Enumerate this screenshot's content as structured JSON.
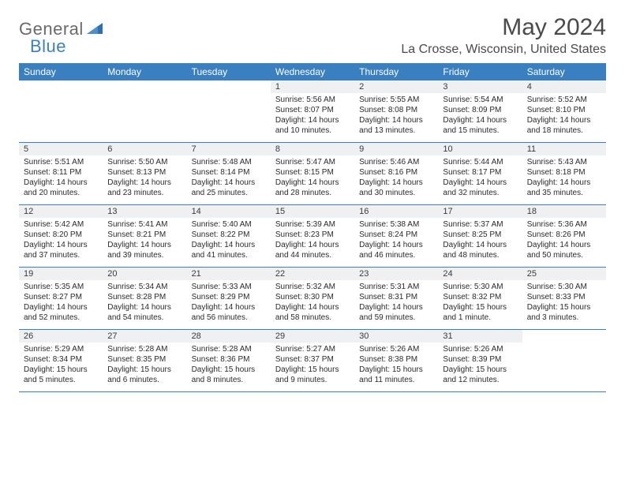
{
  "brand": {
    "part1": "General",
    "part2": "Blue"
  },
  "title": "May 2024",
  "location": "La Crosse, Wisconsin, United States",
  "colors": {
    "header_bg": "#3a7fbf",
    "header_text": "#ffffff",
    "daynum_bg": "#eef0f1",
    "row_border": "#3a7fbf",
    "title_color": "#4a4a4a",
    "logo_gray": "#6a6a6a",
    "logo_blue": "#3a7fbf"
  },
  "day_headers": [
    "Sunday",
    "Monday",
    "Tuesday",
    "Wednesday",
    "Thursday",
    "Friday",
    "Saturday"
  ],
  "weeks": [
    [
      {
        "n": "",
        "sunrise": "",
        "sunset": "",
        "dl1": "",
        "dl2": ""
      },
      {
        "n": "",
        "sunrise": "",
        "sunset": "",
        "dl1": "",
        "dl2": ""
      },
      {
        "n": "",
        "sunrise": "",
        "sunset": "",
        "dl1": "",
        "dl2": ""
      },
      {
        "n": "1",
        "sunrise": "Sunrise: 5:56 AM",
        "sunset": "Sunset: 8:07 PM",
        "dl1": "Daylight: 14 hours",
        "dl2": "and 10 minutes."
      },
      {
        "n": "2",
        "sunrise": "Sunrise: 5:55 AM",
        "sunset": "Sunset: 8:08 PM",
        "dl1": "Daylight: 14 hours",
        "dl2": "and 13 minutes."
      },
      {
        "n": "3",
        "sunrise": "Sunrise: 5:54 AM",
        "sunset": "Sunset: 8:09 PM",
        "dl1": "Daylight: 14 hours",
        "dl2": "and 15 minutes."
      },
      {
        "n": "4",
        "sunrise": "Sunrise: 5:52 AM",
        "sunset": "Sunset: 8:10 PM",
        "dl1": "Daylight: 14 hours",
        "dl2": "and 18 minutes."
      }
    ],
    [
      {
        "n": "5",
        "sunrise": "Sunrise: 5:51 AM",
        "sunset": "Sunset: 8:11 PM",
        "dl1": "Daylight: 14 hours",
        "dl2": "and 20 minutes."
      },
      {
        "n": "6",
        "sunrise": "Sunrise: 5:50 AM",
        "sunset": "Sunset: 8:13 PM",
        "dl1": "Daylight: 14 hours",
        "dl2": "and 23 minutes."
      },
      {
        "n": "7",
        "sunrise": "Sunrise: 5:48 AM",
        "sunset": "Sunset: 8:14 PM",
        "dl1": "Daylight: 14 hours",
        "dl2": "and 25 minutes."
      },
      {
        "n": "8",
        "sunrise": "Sunrise: 5:47 AM",
        "sunset": "Sunset: 8:15 PM",
        "dl1": "Daylight: 14 hours",
        "dl2": "and 28 minutes."
      },
      {
        "n": "9",
        "sunrise": "Sunrise: 5:46 AM",
        "sunset": "Sunset: 8:16 PM",
        "dl1": "Daylight: 14 hours",
        "dl2": "and 30 minutes."
      },
      {
        "n": "10",
        "sunrise": "Sunrise: 5:44 AM",
        "sunset": "Sunset: 8:17 PM",
        "dl1": "Daylight: 14 hours",
        "dl2": "and 32 minutes."
      },
      {
        "n": "11",
        "sunrise": "Sunrise: 5:43 AM",
        "sunset": "Sunset: 8:18 PM",
        "dl1": "Daylight: 14 hours",
        "dl2": "and 35 minutes."
      }
    ],
    [
      {
        "n": "12",
        "sunrise": "Sunrise: 5:42 AM",
        "sunset": "Sunset: 8:20 PM",
        "dl1": "Daylight: 14 hours",
        "dl2": "and 37 minutes."
      },
      {
        "n": "13",
        "sunrise": "Sunrise: 5:41 AM",
        "sunset": "Sunset: 8:21 PM",
        "dl1": "Daylight: 14 hours",
        "dl2": "and 39 minutes."
      },
      {
        "n": "14",
        "sunrise": "Sunrise: 5:40 AM",
        "sunset": "Sunset: 8:22 PM",
        "dl1": "Daylight: 14 hours",
        "dl2": "and 41 minutes."
      },
      {
        "n": "15",
        "sunrise": "Sunrise: 5:39 AM",
        "sunset": "Sunset: 8:23 PM",
        "dl1": "Daylight: 14 hours",
        "dl2": "and 44 minutes."
      },
      {
        "n": "16",
        "sunrise": "Sunrise: 5:38 AM",
        "sunset": "Sunset: 8:24 PM",
        "dl1": "Daylight: 14 hours",
        "dl2": "and 46 minutes."
      },
      {
        "n": "17",
        "sunrise": "Sunrise: 5:37 AM",
        "sunset": "Sunset: 8:25 PM",
        "dl1": "Daylight: 14 hours",
        "dl2": "and 48 minutes."
      },
      {
        "n": "18",
        "sunrise": "Sunrise: 5:36 AM",
        "sunset": "Sunset: 8:26 PM",
        "dl1": "Daylight: 14 hours",
        "dl2": "and 50 minutes."
      }
    ],
    [
      {
        "n": "19",
        "sunrise": "Sunrise: 5:35 AM",
        "sunset": "Sunset: 8:27 PM",
        "dl1": "Daylight: 14 hours",
        "dl2": "and 52 minutes."
      },
      {
        "n": "20",
        "sunrise": "Sunrise: 5:34 AM",
        "sunset": "Sunset: 8:28 PM",
        "dl1": "Daylight: 14 hours",
        "dl2": "and 54 minutes."
      },
      {
        "n": "21",
        "sunrise": "Sunrise: 5:33 AM",
        "sunset": "Sunset: 8:29 PM",
        "dl1": "Daylight: 14 hours",
        "dl2": "and 56 minutes."
      },
      {
        "n": "22",
        "sunrise": "Sunrise: 5:32 AM",
        "sunset": "Sunset: 8:30 PM",
        "dl1": "Daylight: 14 hours",
        "dl2": "and 58 minutes."
      },
      {
        "n": "23",
        "sunrise": "Sunrise: 5:31 AM",
        "sunset": "Sunset: 8:31 PM",
        "dl1": "Daylight: 14 hours",
        "dl2": "and 59 minutes."
      },
      {
        "n": "24",
        "sunrise": "Sunrise: 5:30 AM",
        "sunset": "Sunset: 8:32 PM",
        "dl1": "Daylight: 15 hours",
        "dl2": "and 1 minute."
      },
      {
        "n": "25",
        "sunrise": "Sunrise: 5:30 AM",
        "sunset": "Sunset: 8:33 PM",
        "dl1": "Daylight: 15 hours",
        "dl2": "and 3 minutes."
      }
    ],
    [
      {
        "n": "26",
        "sunrise": "Sunrise: 5:29 AM",
        "sunset": "Sunset: 8:34 PM",
        "dl1": "Daylight: 15 hours",
        "dl2": "and 5 minutes."
      },
      {
        "n": "27",
        "sunrise": "Sunrise: 5:28 AM",
        "sunset": "Sunset: 8:35 PM",
        "dl1": "Daylight: 15 hours",
        "dl2": "and 6 minutes."
      },
      {
        "n": "28",
        "sunrise": "Sunrise: 5:28 AM",
        "sunset": "Sunset: 8:36 PM",
        "dl1": "Daylight: 15 hours",
        "dl2": "and 8 minutes."
      },
      {
        "n": "29",
        "sunrise": "Sunrise: 5:27 AM",
        "sunset": "Sunset: 8:37 PM",
        "dl1": "Daylight: 15 hours",
        "dl2": "and 9 minutes."
      },
      {
        "n": "30",
        "sunrise": "Sunrise: 5:26 AM",
        "sunset": "Sunset: 8:38 PM",
        "dl1": "Daylight: 15 hours",
        "dl2": "and 11 minutes."
      },
      {
        "n": "31",
        "sunrise": "Sunrise: 5:26 AM",
        "sunset": "Sunset: 8:39 PM",
        "dl1": "Daylight: 15 hours",
        "dl2": "and 12 minutes."
      },
      {
        "n": "",
        "sunrise": "",
        "sunset": "",
        "dl1": "",
        "dl2": ""
      }
    ]
  ]
}
